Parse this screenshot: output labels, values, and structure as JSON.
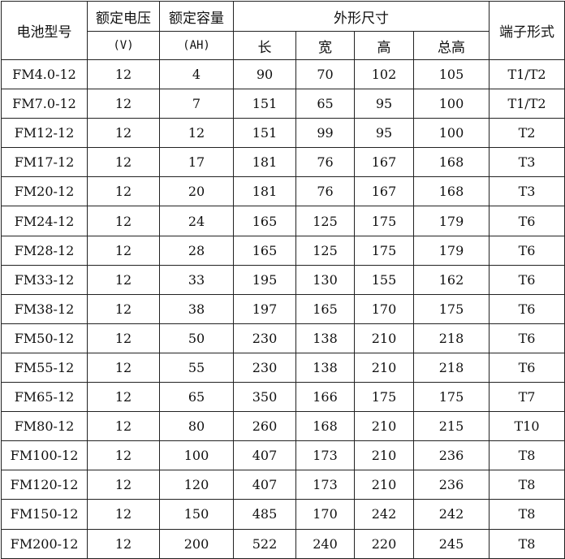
{
  "header": {
    "model": "电池型号",
    "voltage": "额定电压",
    "voltage_unit": "(V)",
    "capacity": "额定容量",
    "capacity_unit": "(AH)",
    "dimensions": "外形尺寸",
    "length": "长",
    "width": "宽",
    "height": "高",
    "total_height": "总高",
    "terminal": "端子形式"
  },
  "rows": [
    [
      "FM4.0-12",
      "12",
      "4",
      "90",
      "70",
      "102",
      "105",
      "T1/T2"
    ],
    [
      "FM7.0-12",
      "12",
      "7",
      "151",
      "65",
      "95",
      "100",
      "T1/T2"
    ],
    [
      "FM12-12",
      "12",
      "12",
      "151",
      "99",
      "95",
      "100",
      "T2"
    ],
    [
      "FM17-12",
      "12",
      "17",
      "181",
      "76",
      "167",
      "168",
      "T3"
    ],
    [
      "FM20-12",
      "12",
      "20",
      "181",
      "76",
      "167",
      "168",
      "T3"
    ],
    [
      "FM24-12",
      "12",
      "24",
      "165",
      "125",
      "175",
      "179",
      "T6"
    ],
    [
      "FM28-12",
      "12",
      "28",
      "165",
      "125",
      "175",
      "179",
      "T6"
    ],
    [
      "FM33-12",
      "12",
      "33",
      "195",
      "130",
      "155",
      "162",
      "T6"
    ],
    [
      "FM38-12",
      "12",
      "38",
      "197",
      "165",
      "170",
      "175",
      "T6"
    ],
    [
      "FM50-12",
      "12",
      "50",
      "230",
      "138",
      "210",
      "218",
      "T6"
    ],
    [
      "FM55-12",
      "12",
      "55",
      "230",
      "138",
      "210",
      "218",
      "T6"
    ],
    [
      "FM65-12",
      "12",
      "65",
      "350",
      "166",
      "175",
      "175",
      "T7"
    ],
    [
      "FM80-12",
      "12",
      "80",
      "260",
      "168",
      "210",
      "215",
      "T10"
    ],
    [
      "FM100-12",
      "12",
      "100",
      "407",
      "173",
      "210",
      "236",
      "T8"
    ],
    [
      "FM120-12",
      "12",
      "120",
      "407",
      "173",
      "210",
      "236",
      "T8"
    ],
    [
      "FM150-12",
      "12",
      "150",
      "485",
      "170",
      "242",
      "242",
      "T8"
    ],
    [
      "FM200-12",
      "12",
      "200",
      "522",
      "240",
      "220",
      "245",
      "T8"
    ]
  ]
}
